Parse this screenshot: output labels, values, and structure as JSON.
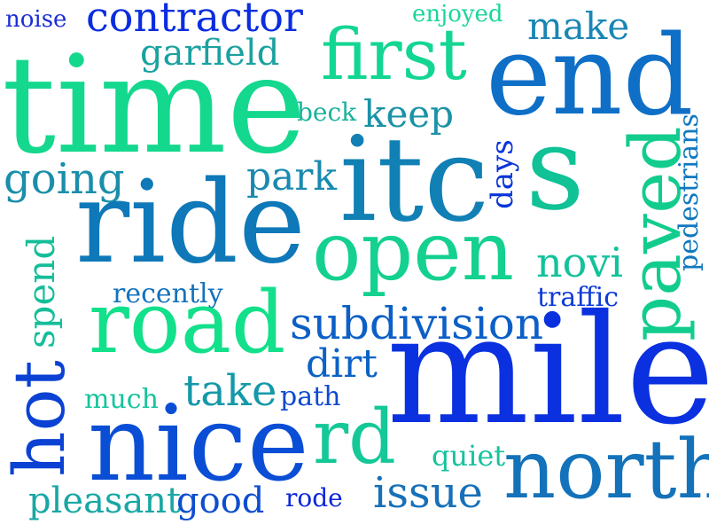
{
  "word_cloud": {
    "words": [
      {
        "text": "noise",
        "color": "#1a2fd6"
      },
      {
        "text": "contractor",
        "color": "#0a2de0"
      },
      {
        "text": "enjoyed",
        "color": "#19d69a"
      },
      {
        "text": "make",
        "color": "#1a86b4"
      },
      {
        "text": "garfield",
        "color": "#1aa1a0"
      },
      {
        "text": "first",
        "color": "#12d692"
      },
      {
        "text": "time",
        "color": "#14d88e"
      },
      {
        "text": "end",
        "color": "#0f6fc6"
      },
      {
        "text": "beck",
        "color": "#1ab29a"
      },
      {
        "text": "keep",
        "color": "#1a92a6"
      },
      {
        "text": "going",
        "color": "#1a8eaa"
      },
      {
        "text": "park",
        "color": "#198ab0"
      },
      {
        "text": "itc",
        "color": "#1180b4"
      },
      {
        "text": "days",
        "color": "#0b35d8"
      },
      {
        "text": "s",
        "color": "#10c296"
      },
      {
        "text": "paved",
        "color": "#12cc8e"
      },
      {
        "text": "pedestrians",
        "color": "#1178c0"
      },
      {
        "text": "ride",
        "color": "#0f78b8"
      },
      {
        "text": "open",
        "color": "#14d18f"
      },
      {
        "text": "novi",
        "color": "#12c29b"
      },
      {
        "text": "spend",
        "color": "#14be99"
      },
      {
        "text": "recently",
        "color": "#1372bc"
      },
      {
        "text": "traffic",
        "color": "#0e3bd8"
      },
      {
        "text": "road",
        "color": "#12e08a"
      },
      {
        "text": "subdivision",
        "color": "#0c5fc6"
      },
      {
        "text": "dirt",
        "color": "#0c62c6"
      },
      {
        "text": "mile",
        "color": "#0a30e0"
      },
      {
        "text": "hot",
        "color": "#0b42d4"
      },
      {
        "text": "take",
        "color": "#1498a8"
      },
      {
        "text": "much",
        "color": "#16c49c"
      },
      {
        "text": "path",
        "color": "#0f4ad0"
      },
      {
        "text": "nice",
        "color": "#0a4ed6"
      },
      {
        "text": "rd",
        "color": "#14c898"
      },
      {
        "text": "quiet",
        "color": "#16c29e"
      },
      {
        "text": "north",
        "color": "#1472ba"
      },
      {
        "text": "pleasant",
        "color": "#18a7a4"
      },
      {
        "text": "good",
        "color": "#0d4ed0"
      },
      {
        "text": "rode",
        "color": "#0a26d8"
      },
      {
        "text": "issue",
        "color": "#1770b8"
      }
    ]
  }
}
